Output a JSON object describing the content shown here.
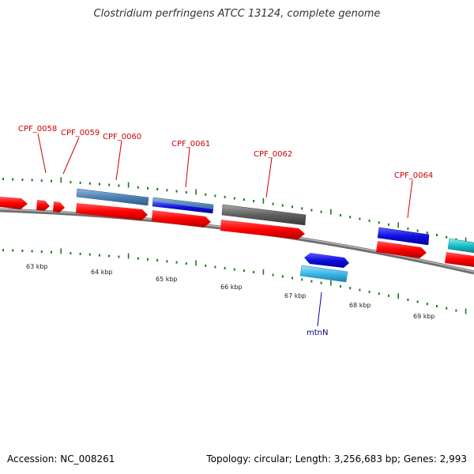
{
  "title": "Clostridium perfringens ATCC 13124, complete genome",
  "footer": {
    "accession": "Accession: NC_008261",
    "summary": "Topology: circular; Length: 3,256,683 bp; Genes: 2,993"
  },
  "colors": {
    "cds": "#ff0000",
    "gene_steelblue": "#4f83b5",
    "gene_blue": "#1010e0",
    "gene_gray": "#606060",
    "gene_cyan": "#1cc0c8",
    "gene_lightblue": "#3cb8e8",
    "tick": "#1a7a1a",
    "backbone": "#808080",
    "label_red": "#cc0000",
    "label_blue": "#000088"
  },
  "scale_labels": [
    "63 kbp",
    "64 kbp",
    "65 kbp",
    "66 kbp",
    "67 kbp",
    "68 kbp",
    "69 kbp"
  ],
  "gene_labels": [
    {
      "text": "CPF_0058",
      "color": "red"
    },
    {
      "text": "CPF_0059",
      "color": "red"
    },
    {
      "text": "CPF_0060",
      "color": "red"
    },
    {
      "text": "CPF_0061",
      "color": "red"
    },
    {
      "text": "CPF_0062",
      "color": "red"
    },
    {
      "text": "CPF_0064",
      "color": "red"
    },
    {
      "text": "mtnN",
      "color": "blue"
    }
  ]
}
